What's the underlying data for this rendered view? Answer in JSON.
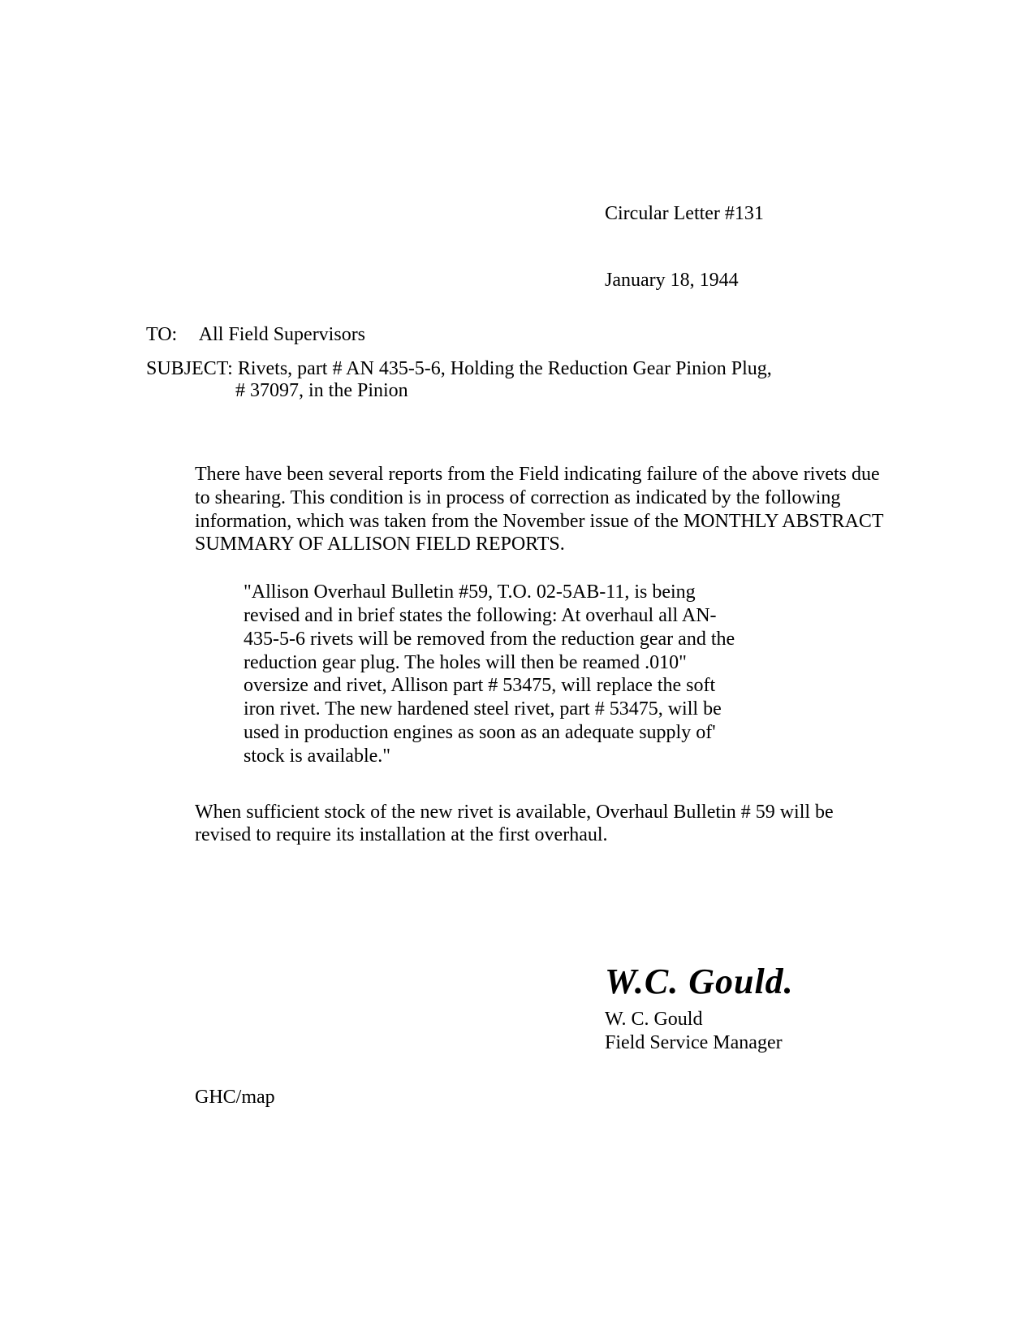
{
  "header": {
    "letter_number": "Circular Letter #131",
    "date": "January 18, 1944"
  },
  "to": {
    "label": "TO:",
    "recipient": "All Field Supervisors"
  },
  "subject": {
    "label": "SUBJECT:",
    "line1": "Rivets, part # AN 435-5-6, Holding the Reduction Gear Pinion Plug,",
    "line2": "# 37097, in the Pinion"
  },
  "body": {
    "para1": "There have been several reports from the Field indicating failure of the above rivets due to shearing.  This condition is in process of correction as indicated by the following information, which was taken from the November issue of the MONTHLY ABSTRACT SUMMARY OF ALLISON FIELD REPORTS.",
    "quote": "\"Allison Overhaul Bulletin #59, T.O. 02-5AB-11, is being revised and in brief states the following:  At overhaul all AN-435-5-6 rivets will be removed from the reduction gear and the reduction gear plug. The holes will then be reamed .010\" oversize and rivet, Allison part # 53475, will replace the soft iron rivet. The new hardened steel rivet, part # 53475, will be used in production engines as soon as an adequate supply of' stock is available.\"",
    "para2": "When sufficient stock of the new rivet is available, Overhaul Bulletin # 59 will be revised to require its installation at the first overhaul."
  },
  "signature": {
    "script": "W.C. Gould.",
    "name": "W. C. Gould",
    "title": "Field Service Manager"
  },
  "footer": {
    "initials": "GHC/map"
  }
}
